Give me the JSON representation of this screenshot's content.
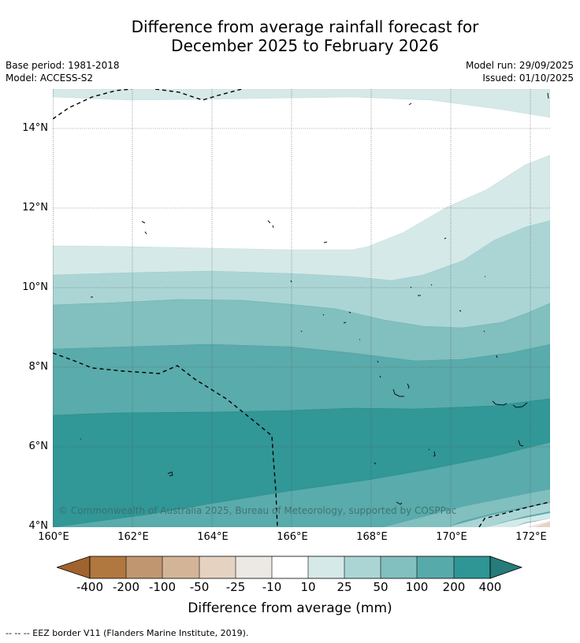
{
  "title": {
    "line1": "Difference from average rainfall forecast for",
    "line2": "December 2025 to February 2026"
  },
  "meta": {
    "base_period": "Base period: 1981-2018",
    "model": "Model: ACCESS-S2",
    "model_run": "Model run: 29/09/2025",
    "issued": "Issued: 01/10/2025"
  },
  "map": {
    "latitude_labels": [
      "14°N",
      "12°N",
      "10°N",
      "8°N",
      "6°N",
      "4°N"
    ],
    "longitude_labels": [
      "160°E",
      "162°E",
      "164°E",
      "166°E",
      "168°E",
      "170°E",
      "172°E"
    ],
    "copyright": "© Commonwealth of Australia 2025, Bureau of Meteorology, supported by COSPPac"
  },
  "colorbar": {
    "title": "Difference from average (mm)",
    "ticks": [
      "-400",
      "-200",
      "-100",
      "-50",
      "-25",
      "-10",
      "10",
      "25",
      "50",
      "100",
      "200",
      "400"
    ],
    "colors": [
      "#a0632e",
      "#b0773f",
      "#c09670",
      "#d4b497",
      "#e6d2c1",
      "#ece8e4",
      "#ffffff",
      "#d5e9e8",
      "#abd5d5",
      "#82bfbf",
      "#57aaaa",
      "#2f9595",
      "#267b7b"
    ]
  },
  "footer": {
    "legend_text": "--  --  -- EEZ border V11 (Flanders Marine Institute, 2019)."
  },
  "colors": {
    "band_10_25": "#d5e9e8",
    "band_25_50": "#abd5d5",
    "band_50_100": "#82bfbf",
    "band_100_200": "#5aabab",
    "band_200_400": "#319797",
    "neg_band_10_25": "#ece8e4",
    "neg_band_25_50": "#e6d2c1"
  }
}
